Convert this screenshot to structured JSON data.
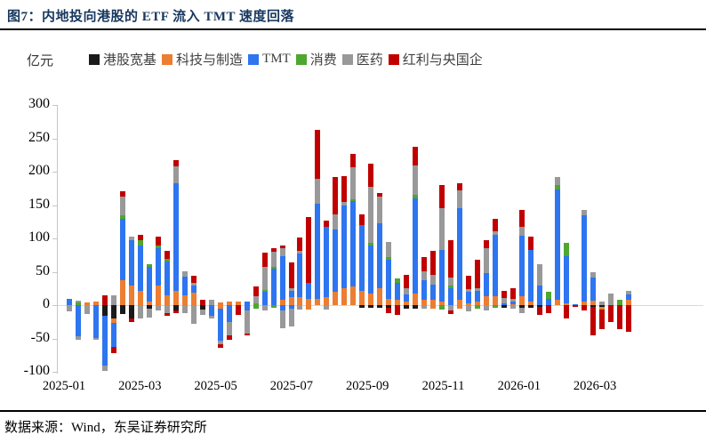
{
  "title": "图7：内地投向港股的 ETF 流入 TMT 速度回落",
  "unit_label": "亿元",
  "source": "数据来源：Wind，东吴证券研究所",
  "colors": {
    "title": "#17375E",
    "rule": "#000000",
    "zero_line": "#d9d9d9",
    "axis": "#c6c6c6"
  },
  "legend": [
    {
      "key": "base",
      "label": "港股宽基",
      "color": "#1a1a1a"
    },
    {
      "key": "tech",
      "label": "科技与制造",
      "color": "#ED7D31"
    },
    {
      "key": "tmt",
      "label": "TMT",
      "color": "#2E75F0"
    },
    {
      "key": "cons",
      "label": "消费",
      "color": "#4EA72E"
    },
    {
      "key": "med",
      "label": "医药",
      "color": "#999999"
    },
    {
      "key": "div",
      "label": "红利与央国企",
      "color": "#C00000"
    }
  ],
  "chart_data": {
    "type": "bar",
    "subtype": "stacked-weekly",
    "title": "内地投向港股的 ETF 流入 TMT 速度回落",
    "ylabel": "亿元",
    "ylim": [
      -100,
      300
    ],
    "yticks": [
      300,
      250,
      200,
      150,
      100,
      50,
      0,
      -50,
      -100
    ],
    "x_axis_labels": [
      "2025-01",
      "2025-03",
      "2025-05",
      "2025-07",
      "2025-09",
      "2025-11",
      "2026-01",
      "2026-03"
    ],
    "grid": "zero-line-only",
    "legend_position": "top",
    "series_order": [
      "base",
      "tech",
      "tmt",
      "cons",
      "med",
      "div"
    ],
    "series_labels": {
      "base": "港股宽基",
      "tech": "科技与制造",
      "tmt": "TMT",
      "cons": "消费",
      "med": "医药",
      "div": "红利与央国企"
    },
    "bars": [
      {
        "p": {
          "tmt": 9
        },
        "n": {
          "med": -9
        }
      },
      {
        "p": {
          "cons": 4,
          "med": 3
        },
        "n": {
          "tmt": -46,
          "med": -6
        }
      },
      {
        "p": {
          "tech": 4
        },
        "n": {
          "med": -13
        }
      },
      {
        "p": {
          "tech": 6
        },
        "n": {
          "tmt": -49,
          "med": -3
        }
      },
      {
        "p": {
          "div": 15
        },
        "n": {
          "base": -16,
          "tmt": -75,
          "med": -7
        }
      },
      {
        "p": {
          "med": 15
        },
        "n": {
          "base": -20,
          "tech": -6,
          "tmt": -36,
          "div": -10
        }
      },
      {
        "p": {
          "tech": 38,
          "tmt": 92,
          "cons": 5,
          "med": 28,
          "div": 8
        },
        "n": {
          "base": -13
        }
      },
      {
        "p": {
          "tech": 30,
          "tmt": 67,
          "med": 6
        },
        "n": {
          "base": -20,
          "div": -5
        }
      },
      {
        "p": {
          "tech": 21,
          "tmt": 69,
          "cons": 7,
          "div": 9
        },
        "n": {
          "med": -20
        }
      },
      {
        "p": {
          "tech": 5,
          "tmt": 52,
          "cons": 5
        },
        "n": {
          "base": -5,
          "med": -13
        }
      },
      {
        "p": {
          "tech": 30,
          "tmt": 55,
          "cons": 5,
          "div": 13
        },
        "n": {
          "med": -8
        }
      },
      {
        "p": {
          "tech": 15,
          "tmt": 50,
          "cons": 4,
          "div": 12
        },
        "n": {
          "med": -12,
          "div": -4
        }
      },
      {
        "p": {
          "tech": 22,
          "tmt": 161,
          "med": 25,
          "div": 10
        },
        "n": {
          "base": -8,
          "div": -4
        }
      },
      {
        "p": {
          "tech": 15,
          "tmt": 28,
          "med": 8
        },
        "n": {
          "med": -12
        }
      },
      {
        "p": {
          "tech": 19,
          "tmt": 10,
          "med": 4,
          "div": 11
        },
        "n": {
          "med": -28
        }
      },
      {
        "p": {
          "div": 8
        },
        "n": {
          "base": -6,
          "med": -8
        }
      },
      {
        "p": {
          "med": 8
        },
        "n": {
          "tmt": -16,
          "med": -4
        }
      },
      {
        "p": {
          "tech": 4
        },
        "n": {
          "tech": -5,
          "tmt": -48,
          "med": -5,
          "div": -6
        }
      },
      {
        "p": {
          "tech": 5
        },
        "n": {
          "tmt": -25,
          "med": -20,
          "div": -7
        }
      },
      {
        "p": {
          "tech": 6
        },
        "n": {
          "div": -15
        }
      },
      {
        "p": {
          "tmt": 6
        },
        "n": {
          "tmt": -8,
          "med": -34,
          "div": -3
        }
      },
      {
        "p": {
          "cons": 3,
          "med": 10,
          "div": 15
        },
        "n": {
          "cons": -5
        }
      },
      {
        "p": {
          "cons": 3,
          "tmt": 20,
          "med": 35,
          "div": 21
        },
        "n": {
          "med": -8
        }
      },
      {
        "p": {
          "cons": 3,
          "tmt": 55,
          "med": 22,
          "div": 5
        },
        "n": {
          "cons": -4
        }
      },
      {
        "p": {
          "tech": 8,
          "tmt": 65,
          "med": 13,
          "div": 3
        },
        "n": {
          "tmt": -8,
          "med": -27
        }
      },
      {
        "p": {
          "tech": 12,
          "tmt": 10,
          "med": 4,
          "div": 38
        },
        "n": {
          "tmt": -5,
          "med": -27
        }
      },
      {
        "p": {
          "tech": 12,
          "tmt": 65,
          "med": 5,
          "div": 20
        },
        "n": {
          "med": -6
        }
      },
      {
        "p": {
          "tech": 10,
          "tmt": 23,
          "div": 99
        },
        "n": {
          "tech": -7
        }
      },
      {
        "p": {
          "tech": 10,
          "tmt": 142,
          "med": 38,
          "div": 73
        },
        "n": {}
      },
      {
        "p": {
          "tech": 12,
          "tmt": 105,
          "div": 10
        },
        "n": {
          "med": -6
        }
      },
      {
        "p": {
          "tech": 20,
          "tmt": 94,
          "med": 22,
          "div": 56
        },
        "n": {}
      },
      {
        "p": {
          "tech": 25,
          "tmt": 125,
          "med": 5,
          "div": 38
        },
        "n": {}
      },
      {
        "p": {
          "tech": 28,
          "tmt": 128,
          "cons": 3,
          "med": 48,
          "div": 20
        },
        "n": {}
      },
      {
        "p": {
          "tech": 22,
          "tmt": 98,
          "div": 16
        },
        "n": {
          "base": -4
        }
      },
      {
        "p": {
          "tech": 18,
          "tmt": 72,
          "cons": 3,
          "med": 85,
          "div": 34
        },
        "n": {
          "base": -4
        }
      },
      {
        "p": {
          "tech": 26,
          "tmt": 97,
          "med": 40,
          "div": 5
        },
        "n": {
          "base": -4
        }
      },
      {
        "p": {
          "tech": 10,
          "tmt": 58,
          "cons": 4,
          "med": 23
        },
        "n": {
          "base": -4,
          "div": -8
        }
      },
      {
        "p": {
          "tech": 8,
          "tmt": 26,
          "cons": 6
        },
        "n": {
          "div": -14
        }
      },
      {
        "p": {
          "tech": 5,
          "tmt": 11,
          "med": 9,
          "div": 21
        },
        "n": {
          "base": -5
        }
      },
      {
        "p": {
          "tech": 17,
          "tmt": 143,
          "cons": 6,
          "med": 43,
          "div": 29
        },
        "n": {
          "base": -5
        }
      },
      {
        "p": {
          "tech": 8,
          "tmt": 30,
          "med": 13,
          "div": 21
        },
        "n": {
          "med": -5
        }
      },
      {
        "p": {
          "tech": 8,
          "tmt": 23,
          "med": 15,
          "div": 35
        },
        "n": {
          "tech": -5
        }
      },
      {
        "p": {
          "tech": 5,
          "tmt": 78,
          "med": 63,
          "div": 34
        },
        "n": {
          "cons": -6
        }
      },
      {
        "p": {
          "tmt": 25,
          "cons": 5,
          "med": 12,
          "div": 55
        },
        "n": {
          "med": -8,
          "div": -5
        }
      },
      {
        "p": {
          "tech": 8,
          "tmt": 138,
          "med": 26,
          "div": 11
        },
        "n": {
          "tech": -5
        }
      },
      {
        "p": {
          "tech": 3,
          "tmt": 17,
          "med": 4,
          "div": 20
        },
        "n": {
          "med": -9
        }
      },
      {
        "p": {
          "tech": 6,
          "tmt": 16,
          "med": 4,
          "div": 42
        },
        "n": {
          "cons": -5
        }
      },
      {
        "p": {
          "tech": 14,
          "tmt": 34,
          "med": 38,
          "div": 11
        },
        "n": {
          "med": -8
        }
      },
      {
        "p": {
          "tech": 13,
          "tmt": 92,
          "med": 6,
          "div": 19
        },
        "n": {
          "cons": -4
        }
      },
      {
        "p": {
          "tmt": 3,
          "med": 8,
          "div": 10
        },
        "n": {
          "base": -4
        }
      },
      {
        "p": {
          "tech": 2,
          "tmt": 4,
          "med": 3,
          "div": 17
        },
        "n": {
          "med": -5
        }
      },
      {
        "p": {
          "tech": 14,
          "tmt": 90,
          "med": 14,
          "div": 25
        },
        "n": {
          "base": -4,
          "med": -8
        }
      },
      {
        "p": {
          "tech": 5,
          "tmt": 78,
          "div": 20
        },
        "n": {
          "base": -4
        }
      },
      {
        "p": {
          "tmt": 30,
          "med": 32
        },
        "n": {
          "base": -3,
          "div": -11
        }
      },
      {
        "p": {
          "tmt": 10,
          "cons": 10
        },
        "n": {
          "div": -12
        }
      },
      {
        "p": {
          "tech": 8,
          "tmt": 166,
          "cons": 6,
          "med": 12
        },
        "n": {}
      },
      {
        "p": {
          "tech": 3,
          "tmt": 71,
          "cons": 19
        },
        "n": {
          "div": -20
        }
      },
      {
        "p": {
          "tmt": 2
        },
        "n": {
          "div": -3
        }
      },
      {
        "p": {
          "tech": 5,
          "tmt": 130,
          "med": 8
        },
        "n": {
          "div": -8
        }
      },
      {
        "p": {
          "tech": 7,
          "tmt": 35,
          "med": 8
        },
        "n": {
          "base": -3,
          "div": -42
        }
      },
      {
        "p": {
          "med": 5
        },
        "n": {
          "base": -3,
          "tech": -3,
          "div": -30
        }
      },
      {
        "p": {
          "med": 18
        },
        "n": {
          "div": -25
        }
      },
      {
        "p": {
          "cons": 8
        },
        "n": {
          "div": -36
        }
      },
      {
        "p": {
          "tech": 8,
          "tmt": 8,
          "med": 5
        },
        "n": {
          "div": -40
        }
      }
    ]
  }
}
